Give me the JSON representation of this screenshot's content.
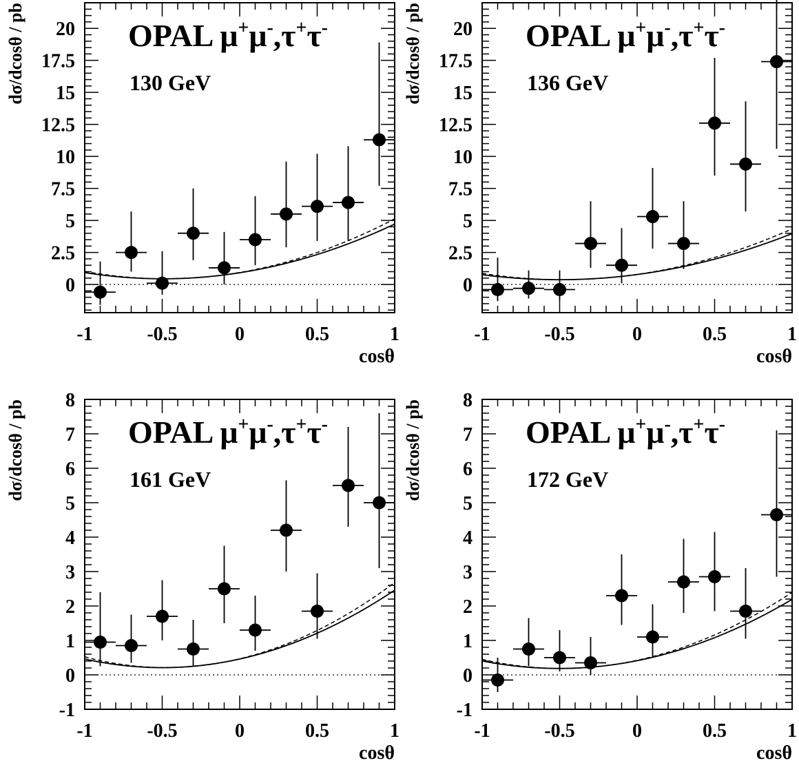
{
  "chart_data": [
    {
      "type": "scatter",
      "title": "OPAL μ⁺μ⁻,τ⁺τ⁻",
      "title_parts": [
        "OPAL μ",
        "+",
        "μ",
        "-",
        ",τ",
        "+",
        "τ",
        "-"
      ],
      "energy_label": "130 GeV",
      "xlabel": "cosθ",
      "ylabel": "dσ/dcosθ / pb",
      "xlim": [
        -1,
        1
      ],
      "ylim": [
        -2.2,
        22
      ],
      "x_ticks": [
        "-1",
        "-0.5",
        "0",
        "0.5",
        "1"
      ],
      "y_ticks": [
        "0",
        "2.5",
        "5",
        "7.5",
        "10",
        "12.5",
        "15",
        "17.5",
        "20"
      ],
      "x": [
        -0.9,
        -0.7,
        -0.5,
        -0.3,
        -0.1,
        0.1,
        0.3,
        0.5,
        0.7,
        0.9
      ],
      "y": [
        -0.6,
        2.5,
        0.1,
        4.0,
        1.3,
        3.5,
        5.5,
        6.1,
        6.4,
        11.3
      ],
      "x_err": 0.1,
      "y_err_low": [
        1.0,
        1.5,
        0.9,
        2.1,
        1.3,
        2.0,
        2.6,
        2.7,
        3.0,
        3.6
      ],
      "y_err_high": [
        2.4,
        3.2,
        2.5,
        3.5,
        2.8,
        3.4,
        4.1,
        4.1,
        4.4,
        7.6
      ],
      "solid_curve": {
        "a": 3.7,
        "b": 3.6,
        "c": 4.2
      },
      "dashed_curve": {
        "a": 3.7,
        "b": 3.9,
        "c": 4.7
      },
      "reference_line_y": 0
    },
    {
      "type": "scatter",
      "title": "OPAL μ⁺μ⁻,τ⁺τ⁻",
      "title_parts": [
        "OPAL μ",
        "+",
        "μ",
        "-",
        ",τ",
        "+",
        "τ",
        "-"
      ],
      "energy_label": "136 GeV",
      "xlabel": "cosθ",
      "ylabel": "dσ/dcosθ / pb",
      "xlim": [
        -1,
        1
      ],
      "ylim": [
        -2.2,
        22
      ],
      "x_ticks": [
        "-1",
        "-0.5",
        "0",
        "0.5",
        "1"
      ],
      "y_ticks": [
        "0",
        "2.5",
        "5",
        "7.5",
        "10",
        "12.5",
        "15",
        "17.5",
        "20"
      ],
      "x": [
        -0.9,
        -0.7,
        -0.5,
        -0.3,
        -0.1,
        0.1,
        0.3,
        0.5,
        0.7,
        0.9
      ],
      "y": [
        -0.4,
        -0.3,
        -0.4,
        3.2,
        1.5,
        5.3,
        3.2,
        12.6,
        9.4,
        17.4
      ],
      "x_err": 0.1,
      "y_err_low": [
        0.9,
        0.8,
        0.8,
        1.9,
        1.4,
        2.5,
        2.0,
        4.1,
        3.7,
        6.8
      ],
      "y_err_high": [
        2.5,
        1.4,
        1.5,
        3.3,
        2.9,
        3.8,
        3.3,
        5.1,
        4.9,
        7.6
      ],
      "solid_curve": {
        "a": 3.1,
        "b": 3.05,
        "c": 3.5
      },
      "dashed_curve": {
        "a": 3.1,
        "b": 3.3,
        "c": 4.0
      },
      "reference_line_y": 0
    },
    {
      "type": "scatter",
      "title": "OPAL μ⁺μ⁻,τ⁺τ⁻",
      "title_parts": [
        "OPAL μ",
        "+",
        "μ",
        "-",
        ",τ",
        "+",
        "τ",
        "-"
      ],
      "energy_label": "161 GeV",
      "xlabel": "cosθ",
      "ylabel": "dσ/dcosθ / pb",
      "xlim": [
        -1,
        1
      ],
      "ylim": [
        -1,
        8
      ],
      "x_ticks": [
        "-1",
        "-0.5",
        "0",
        "0.5",
        "1"
      ],
      "y_ticks": [
        "-1",
        "0",
        "1",
        "2",
        "3",
        "4",
        "5",
        "6",
        "7",
        "8"
      ],
      "x": [
        -0.9,
        -0.7,
        -0.5,
        -0.3,
        -0.1,
        0.1,
        0.3,
        0.5,
        0.7,
        0.9
      ],
      "y": [
        0.95,
        0.85,
        1.7,
        0.75,
        2.5,
        1.3,
        4.2,
        1.85,
        5.5,
        5.0
      ],
      "x_err": 0.1,
      "y_err_low": [
        0.7,
        0.5,
        0.7,
        0.5,
        1.0,
        0.6,
        1.2,
        0.8,
        1.2,
        1.9
      ],
      "y_err_high": [
        1.45,
        0.9,
        1.05,
        0.85,
        1.25,
        1.0,
        1.45,
        1.1,
        1.7,
        2.6
      ],
      "solid_curve": {
        "a": 1.75,
        "b": 1.9,
        "c": 2.2
      },
      "dashed_curve": {
        "a": 1.75,
        "b": 2.05,
        "c": 2.5
      },
      "reference_line_y": 0
    },
    {
      "type": "scatter",
      "title": "OPAL μ⁺μ⁻,τ⁺τ⁻",
      "title_parts": [
        "OPAL μ",
        "+",
        "μ",
        "-",
        ",τ",
        "+",
        "τ",
        "-"
      ],
      "energy_label": "172 GeV",
      "xlabel": "cosθ",
      "ylabel": "dσ/dcosθ / pb",
      "xlim": [
        -1,
        1
      ],
      "ylim": [
        -1,
        8
      ],
      "x_ticks": [
        "-1",
        "-0.5",
        "0",
        "0.5",
        "1"
      ],
      "y_ticks": [
        "-1",
        "0",
        "1",
        "2",
        "3",
        "4",
        "5",
        "6",
        "7",
        "8"
      ],
      "x": [
        -0.9,
        -0.7,
        -0.5,
        -0.3,
        -0.1,
        0.1,
        0.3,
        0.5,
        0.7,
        0.9
      ],
      "y": [
        -0.15,
        0.75,
        0.5,
        0.35,
        2.3,
        1.1,
        2.7,
        2.85,
        1.85,
        4.65
      ],
      "x_err": 0.1,
      "y_err_low": [
        0.35,
        0.5,
        0.4,
        0.35,
        0.85,
        0.6,
        0.9,
        1.0,
        0.8,
        1.8
      ],
      "y_err_high": [
        0.65,
        0.9,
        0.8,
        0.75,
        1.2,
        0.95,
        1.25,
        1.3,
        1.25,
        2.45
      ],
      "solid_curve": {
        "a": 1.55,
        "b": 1.7,
        "c": 1.95
      },
      "dashed_curve": {
        "a": 1.55,
        "b": 1.85,
        "c": 2.2
      },
      "reference_line_y": 0
    }
  ]
}
